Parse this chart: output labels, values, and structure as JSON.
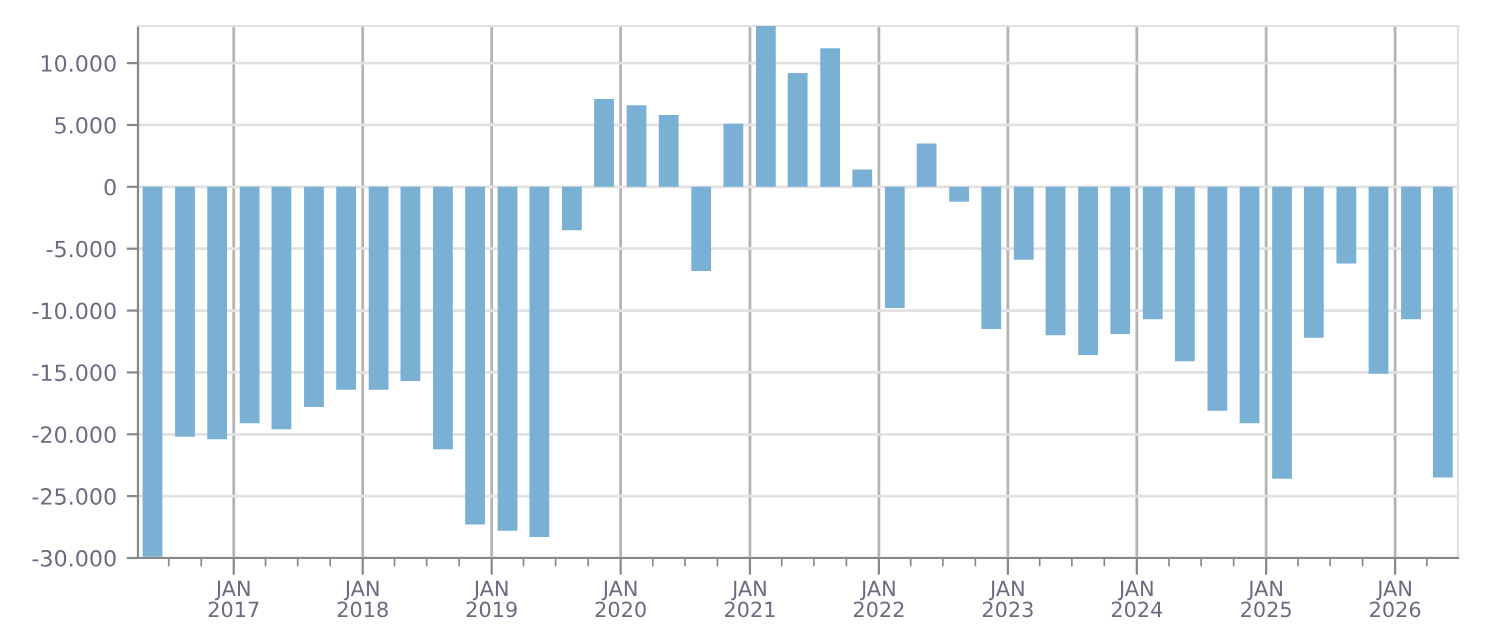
{
  "chart_data": {
    "type": "bar",
    "color": "#7ab0d4",
    "x": [
      "2016-05-16",
      "2016-08-16",
      "2016-11-15",
      "2017-02-15",
      "2017-05-16",
      "2017-08-16",
      "2017-11-15",
      "2018-02-15",
      "2018-05-16",
      "2018-08-16",
      "2018-11-15",
      "2019-02-15",
      "2019-05-16",
      "2019-08-16",
      "2019-11-15",
      "2020-02-15",
      "2020-05-16",
      "2020-08-16",
      "2020-11-15",
      "2021-02-15",
      "2021-05-16",
      "2021-08-16",
      "2021-11-15",
      "2022-02-15",
      "2022-05-16",
      "2022-08-16",
      "2022-11-15",
      "2023-02-15",
      "2023-05-16",
      "2023-08-16",
      "2023-11-15",
      "2024-02-15",
      "2024-05-16",
      "2024-08-16",
      "2024-11-15",
      "2025-02-15",
      "2025-05-16",
      "2025-08-16",
      "2025-11-15",
      "2026-02-15",
      "2026-05-16"
    ],
    "values": [
      -29900,
      -20200,
      -20400,
      -19100,
      -19600,
      -17800,
      -16400,
      -16400,
      -15700,
      -21200,
      -27300,
      -27800,
      -28300,
      -3500,
      7100,
      6600,
      5800,
      -6800,
      5100,
      13000,
      9200,
      11200,
      1400,
      -9800,
      3500,
      -1200,
      -11500,
      -5900,
      -12000,
      -13600,
      -11900,
      -10700,
      -14100,
      -18100,
      -19100,
      -23600,
      -12200,
      -6200,
      -15100,
      -10700,
      -23500
    ],
    "xlim": [
      "2016-04-05",
      "2026-06-28"
    ],
    "xticks": [
      {
        "value": "2016-07-01",
        "label": null
      },
      {
        "value": "2016-10-01",
        "label": null
      },
      {
        "value": "2017-01-01",
        "label": "JAN\n2017"
      },
      {
        "value": "2017-04-01",
        "label": null
      },
      {
        "value": "2017-07-01",
        "label": null
      },
      {
        "value": "2017-10-01",
        "label": null
      },
      {
        "value": "2018-01-01",
        "label": "JAN\n2018"
      },
      {
        "value": "2018-04-01",
        "label": null
      },
      {
        "value": "2018-07-01",
        "label": null
      },
      {
        "value": "2018-10-01",
        "label": null
      },
      {
        "value": "2019-01-01",
        "label": "JAN\n2019"
      },
      {
        "value": "2019-04-01",
        "label": null
      },
      {
        "value": "2019-07-01",
        "label": null
      },
      {
        "value": "2019-10-01",
        "label": null
      },
      {
        "value": "2020-01-01",
        "label": "JAN\n2020"
      },
      {
        "value": "2020-04-01",
        "label": null
      },
      {
        "value": "2020-07-01",
        "label": null
      },
      {
        "value": "2020-10-01",
        "label": null
      },
      {
        "value": "2021-01-01",
        "label": "JAN\n2021"
      },
      {
        "value": "2021-04-01",
        "label": null
      },
      {
        "value": "2021-07-01",
        "label": null
      },
      {
        "value": "2021-10-01",
        "label": null
      },
      {
        "value": "2022-01-01",
        "label": "JAN\n2022"
      },
      {
        "value": "2022-04-01",
        "label": null
      },
      {
        "value": "2022-07-01",
        "label": null
      },
      {
        "value": "2022-10-01",
        "label": null
      },
      {
        "value": "2023-01-01",
        "label": "JAN\n2023"
      },
      {
        "value": "2023-04-01",
        "label": null
      },
      {
        "value": "2023-07-01",
        "label": null
      },
      {
        "value": "2023-10-01",
        "label": null
      },
      {
        "value": "2024-01-01",
        "label": "JAN\n2024"
      },
      {
        "value": "2024-04-01",
        "label": null
      },
      {
        "value": "2024-07-01",
        "label": null
      },
      {
        "value": "2024-10-01",
        "label": null
      },
      {
        "value": "2025-01-01",
        "label": "JAN\n2025"
      },
      {
        "value": "2025-04-01",
        "label": null
      },
      {
        "value": "2025-07-01",
        "label": null
      },
      {
        "value": "2025-10-01",
        "label": null
      },
      {
        "value": "2026-01-01",
        "label": "JAN\n2026"
      },
      {
        "value": "2026-04-01",
        "label": null
      }
    ],
    "ylim": [
      -30000,
      13000
    ],
    "yticks": [
      {
        "value": -30000,
        "label": "-30.000"
      },
      {
        "value": -25000,
        "label": "-25.000"
      },
      {
        "value": -20000,
        "label": "-20.000"
      },
      {
        "value": -15000,
        "label": "-15.000"
      },
      {
        "value": -10000,
        "label": "-10.000"
      },
      {
        "value": -5000,
        "label": "-5.000"
      },
      {
        "value": 0,
        "label": "0"
      },
      {
        "value": 5000,
        "label": "5.000"
      },
      {
        "value": 10000,
        "label": "10.000"
      }
    ],
    "grid": true
  }
}
